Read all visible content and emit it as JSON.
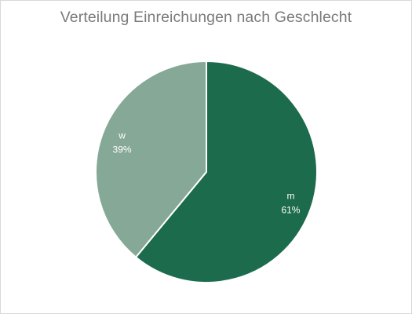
{
  "chart_data": {
    "type": "pie",
    "title": "Verteilung Einreichungen nach Geschlecht",
    "categories": [
      "m",
      "w"
    ],
    "values": [
      61,
      39
    ],
    "value_labels": [
      "61%",
      "39%"
    ],
    "colors": [
      "#1c6b4c",
      "#86a896"
    ],
    "legend": "none",
    "start_angle": "12 o'clock",
    "direction": "clockwise"
  }
}
